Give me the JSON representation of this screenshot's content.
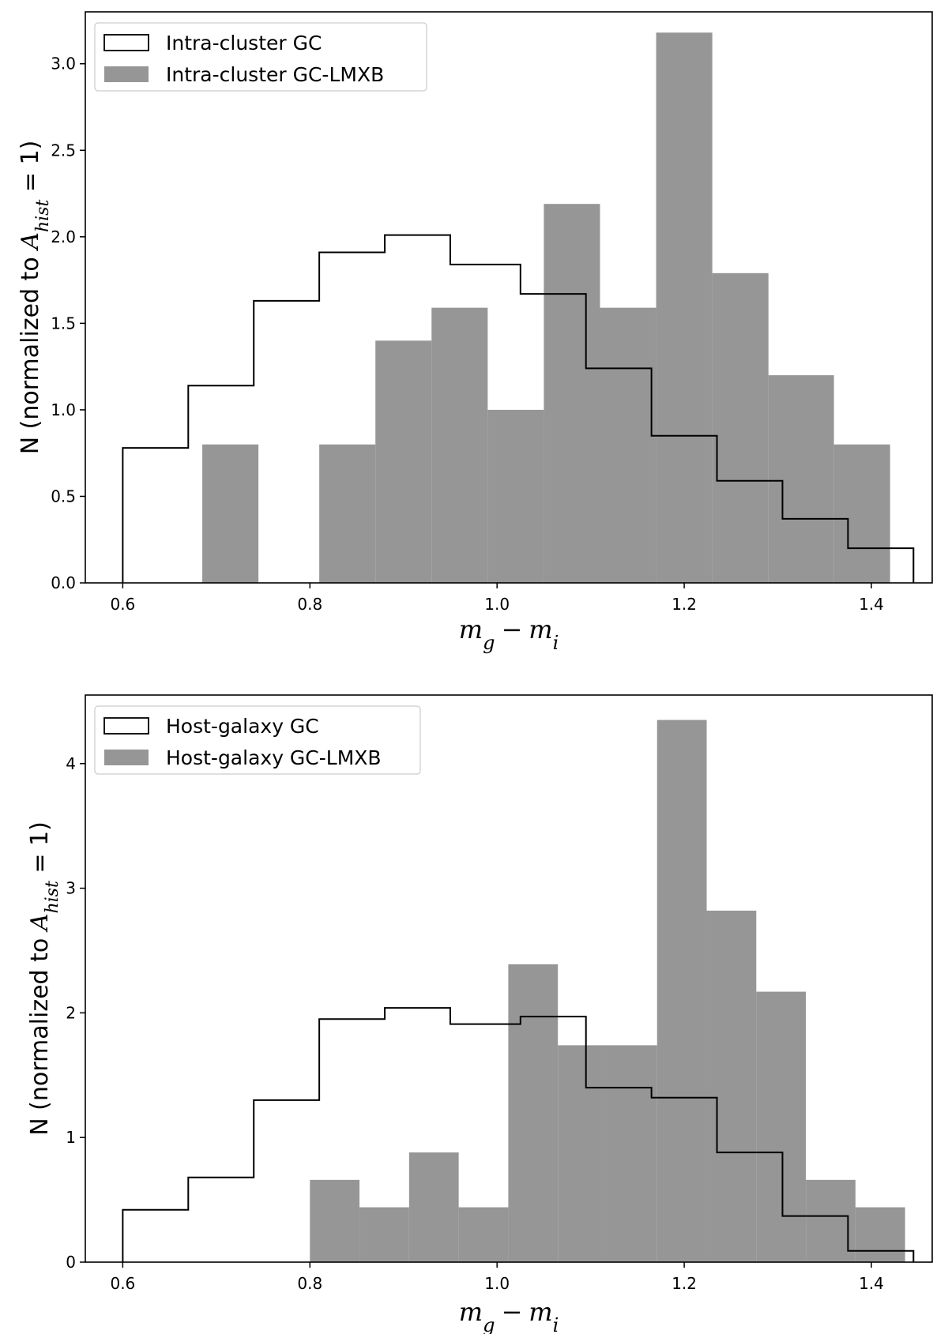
{
  "chart_data": [
    {
      "type": "histogram",
      "panel": "top",
      "xlabel": "m_g − m_i",
      "xlabel_parts": {
        "m1": "m",
        "s1": "g",
        "minus": "−",
        "m2": "m",
        "s2": "i"
      },
      "ylabel_parts": {
        "prefix": "N (normalized to ",
        "A": "A",
        "sub": "hist",
        "suffix": " = 1)"
      },
      "xlim": [
        0.56,
        1.465
      ],
      "ylim": [
        0,
        3.3
      ],
      "xticks": [
        0.6,
        0.8,
        1.0,
        1.2,
        1.4
      ],
      "xtick_labels": [
        "0.6",
        "0.8",
        "1.0",
        "1.2",
        "1.4"
      ],
      "yticks": [
        0,
        0.5,
        1.0,
        1.5,
        2.0,
        2.5,
        3.0
      ],
      "ytick_labels": [
        "0.0",
        "0.5",
        "1.0",
        "1.5",
        "2.0",
        "2.5",
        "3.0"
      ],
      "legend_position": "upper-left",
      "series": [
        {
          "name": "Intra-cluster GC",
          "style": "step",
          "color": "#000000",
          "edges": [
            0.6,
            0.67,
            0.74,
            0.81,
            0.88,
            0.95,
            1.025,
            1.095,
            1.165,
            1.235,
            1.305,
            1.375,
            1.445
          ],
          "values": [
            0.78,
            1.14,
            1.63,
            1.91,
            2.01,
            1.84,
            1.67,
            1.24,
            0.85,
            0.59,
            0.37,
            0.2
          ]
        },
        {
          "name": "Intra-cluster GC-LMXB",
          "style": "filled",
          "color": "#969696",
          "edges": [
            0.685,
            0.745,
            0.81,
            0.87,
            0.93,
            0.99,
            1.05,
            1.11,
            1.17,
            1.23,
            1.29,
            1.36,
            1.42
          ],
          "values": [
            0.8,
            0,
            0.8,
            1.4,
            1.59,
            1.0,
            2.19,
            1.59,
            3.18,
            1.79,
            1.2,
            0.8
          ]
        }
      ]
    },
    {
      "type": "histogram",
      "panel": "bottom",
      "xlabel": "m_g − m_i",
      "xlabel_parts": {
        "m1": "m",
        "s1": "g",
        "minus": "−",
        "m2": "m",
        "s2": "i"
      },
      "ylabel_parts": {
        "prefix": "N (normalized to ",
        "A": "A",
        "sub": "hist",
        "suffix": " = 1)"
      },
      "xlim": [
        0.56,
        1.465
      ],
      "ylim": [
        0,
        4.55
      ],
      "xticks": [
        0.6,
        0.8,
        1.0,
        1.2,
        1.4
      ],
      "xtick_labels": [
        "0.6",
        "0.8",
        "1.0",
        "1.2",
        "1.4"
      ],
      "yticks": [
        0,
        1,
        2,
        3,
        4
      ],
      "ytick_labels": [
        "0",
        "1",
        "2",
        "3",
        "4"
      ],
      "legend_position": "upper-left",
      "series": [
        {
          "name": "Host-galaxy GC",
          "style": "step",
          "color": "#000000",
          "edges": [
            0.6,
            0.67,
            0.74,
            0.81,
            0.88,
            0.95,
            1.025,
            1.095,
            1.165,
            1.235,
            1.305,
            1.375,
            1.445
          ],
          "values": [
            0.42,
            0.68,
            1.3,
            1.95,
            2.04,
            1.91,
            1.97,
            1.4,
            1.32,
            0.88,
            0.37,
            0.09
          ]
        },
        {
          "name": "Host-galaxy GC-LMXB",
          "style": "filled",
          "color": "#969696",
          "edges": [
            0.8,
            0.853,
            0.906,
            0.959,
            1.012,
            1.065,
            1.118,
            1.171,
            1.224,
            1.277,
            1.33,
            1.383,
            1.436
          ],
          "values": [
            0.66,
            0.44,
            0.88,
            0.44,
            2.39,
            1.74,
            1.74,
            4.35,
            2.82,
            2.17,
            0.66,
            0.44
          ]
        }
      ]
    }
  ]
}
